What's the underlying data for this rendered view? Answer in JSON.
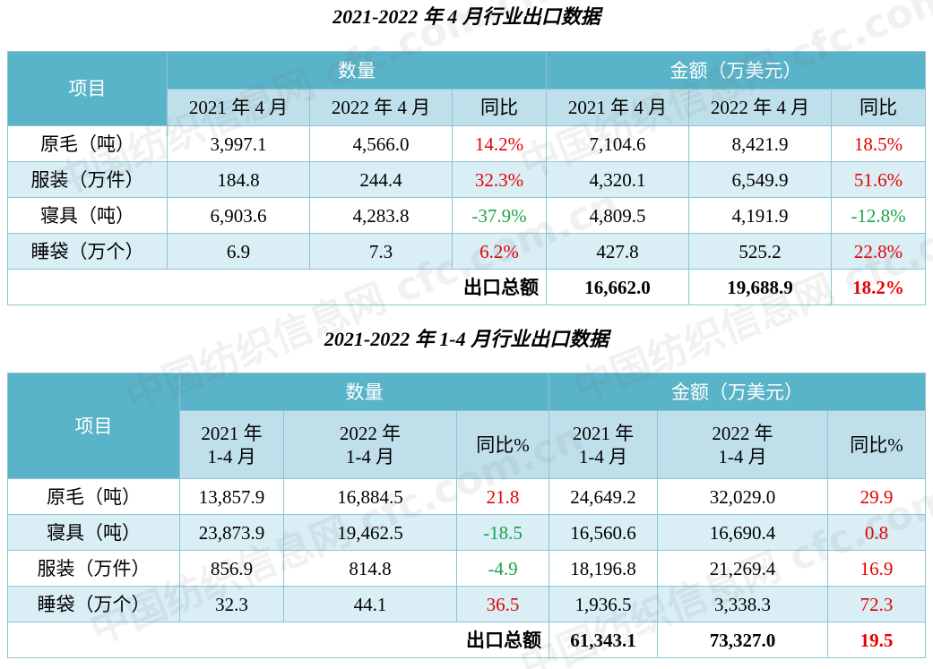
{
  "table1": {
    "title": "2021-2022 年 4 月行业出口数据",
    "header": {
      "item": "项目",
      "quantity": "数量",
      "amount": "金额（万美元）",
      "cols": [
        "2021 年 4 月",
        "2022 年 4 月",
        "同比",
        "2021 年 4 月",
        "2022 年 4 月",
        "同比"
      ]
    },
    "rows": [
      {
        "name": "原毛（吨）",
        "q2021": "3,997.1",
        "q2022": "4,566.0",
        "q_yoy": "14.2%",
        "q_yoy_sign": "up",
        "a2021": "7,104.6",
        "a2022": "8,421.9",
        "a_yoy": "18.5%",
        "a_yoy_sign": "up"
      },
      {
        "name": "服装（万件）",
        "q2021": "184.8",
        "q2022": "244.4",
        "q_yoy": "32.3%",
        "q_yoy_sign": "up",
        "a2021": "4,320.1",
        "a2022": "6,549.9",
        "a_yoy": "51.6%",
        "a_yoy_sign": "up"
      },
      {
        "name": "寝具（吨）",
        "q2021": "6,903.6",
        "q2022": "4,283.8",
        "q_yoy": "-37.9%",
        "q_yoy_sign": "down",
        "a2021": "4,809.5",
        "a2022": "4,191.9",
        "a_yoy": "-12.8%",
        "a_yoy_sign": "down"
      },
      {
        "name": "睡袋（万个）",
        "q2021": "6.9",
        "q2022": "7.3",
        "q_yoy": "6.2%",
        "q_yoy_sign": "up",
        "a2021": "427.8",
        "a2022": "525.2",
        "a_yoy": "22.8%",
        "a_yoy_sign": "up"
      }
    ],
    "total": {
      "label": "出口总额",
      "a2021": "16,662.0",
      "a2022": "19,688.9",
      "yoy": "18.2%"
    }
  },
  "table2": {
    "title": "2021-2022 年 1-4 月行业出口数据",
    "header": {
      "item": "项目",
      "quantity": "数量",
      "amount": "金额（万美元）",
      "year2021": "2021 年",
      "year2022": "2022 年",
      "period": "1-4 月",
      "yoy": "同比%"
    },
    "rows": [
      {
        "name": "原毛（吨）",
        "q2021": "13,857.9",
        "q2022": "16,884.5",
        "q_yoy": "21.8",
        "q_yoy_sign": "up",
        "a2021": "24,649.2",
        "a2022": "32,029.0",
        "a_yoy": "29.9",
        "a_yoy_sign": "up"
      },
      {
        "name": "寝具（吨）",
        "q2021": "23,873.9",
        "q2022": "19,462.5",
        "q_yoy": "-18.5",
        "q_yoy_sign": "down",
        "a2021": "16,560.6",
        "a2022": "16,690.4",
        "a_yoy": "0.8",
        "a_yoy_sign": "up"
      },
      {
        "name": "服装（万件）",
        "q2021": "856.9",
        "q2022": "814.8",
        "q_yoy": "-4.9",
        "q_yoy_sign": "down",
        "a2021": "18,196.8",
        "a2022": "21,269.4",
        "a_yoy": "16.9",
        "a_yoy_sign": "up"
      },
      {
        "name": "睡袋（万个）",
        "q2021": "32.3",
        "q2022": "44.1",
        "q_yoy": "36.5",
        "q_yoy_sign": "up",
        "a2021": "1,936.5",
        "a2022": "3,338.3",
        "a_yoy": "72.3",
        "a_yoy_sign": "up"
      }
    ],
    "total": {
      "label": "出口总额",
      "a2021": "61,343.1",
      "a2022": "73,327.0",
      "yoy": "19.5"
    }
  },
  "colors": {
    "header_bg": "#59b3c9",
    "subheader_bg": "#bfe0ea",
    "row_alt_bg": "#d9eef5",
    "positive": "#e60000",
    "negative": "#1aa44a"
  },
  "watermark": "中国纺织信息网 cfc.com.cn"
}
